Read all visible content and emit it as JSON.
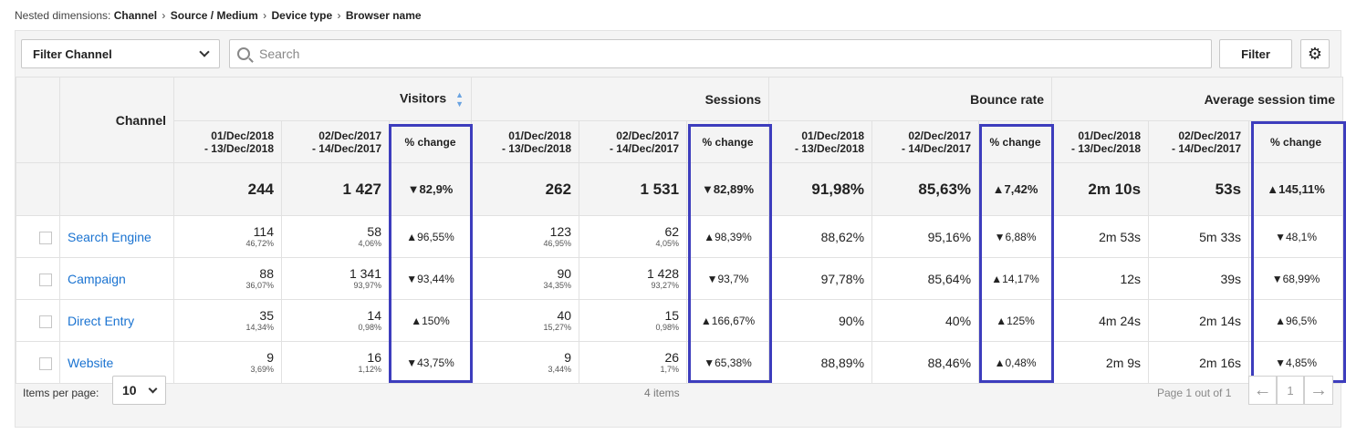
{
  "breadcrumb": {
    "lead": "Nested dimensions:",
    "segments": [
      "Channel",
      "Source / Medium",
      "Device type",
      "Browser name"
    ]
  },
  "toolbar": {
    "filter_select": "Filter Channel",
    "search_placeholder": "Search",
    "filter_button": "Filter",
    "settings_icon": "gear-icon"
  },
  "table": {
    "channel_header": "Channel",
    "groups": [
      "Visitors",
      "Sessions",
      "Bounce rate",
      "Average session time"
    ],
    "subheaders": {
      "range_a_line1": "01/Dec/2018",
      "range_a_line2": "- 13/Dec/2018",
      "range_b_line1": "02/Dec/2017",
      "range_b_line2": "- 14/Dec/2017",
      "change": "% change"
    },
    "totals": [
      "244",
      "1 427",
      "▼82,9%",
      "262",
      "1 531",
      "▼82,89%",
      "91,98%",
      "85,63%",
      "▲7,42%",
      "2m 10s",
      "53s",
      "▲145,11%"
    ],
    "rows": [
      {
        "channel": "Search Engine",
        "visitors": {
          "a": "114",
          "a_share": "46,72%",
          "b": "58",
          "b_share": "4,06%",
          "change": "▲96,55%"
        },
        "sessions": {
          "a": "123",
          "a_share": "46,95%",
          "b": "62",
          "b_share": "4,05%",
          "change": "▲98,39%"
        },
        "bounce": {
          "a": "88,62%",
          "b": "95,16%",
          "change": "▼6,88%"
        },
        "avg": {
          "a": "2m 53s",
          "b": "5m 33s",
          "change": "▼48,1%"
        }
      },
      {
        "channel": "Campaign",
        "visitors": {
          "a": "88",
          "a_share": "36,07%",
          "b": "1 341",
          "b_share": "93,97%",
          "change": "▼93,44%"
        },
        "sessions": {
          "a": "90",
          "a_share": "34,35%",
          "b": "1 428",
          "b_share": "93,27%",
          "change": "▼93,7%"
        },
        "bounce": {
          "a": "97,78%",
          "b": "85,64%",
          "change": "▲14,17%"
        },
        "avg": {
          "a": "12s",
          "b": "39s",
          "change": "▼68,99%"
        }
      },
      {
        "channel": "Direct Entry",
        "visitors": {
          "a": "35",
          "a_share": "14,34%",
          "b": "14",
          "b_share": "0,98%",
          "change": "▲150%"
        },
        "sessions": {
          "a": "40",
          "a_share": "15,27%",
          "b": "15",
          "b_share": "0,98%",
          "change": "▲166,67%"
        },
        "bounce": {
          "a": "90%",
          "b": "40%",
          "change": "▲125%"
        },
        "avg": {
          "a": "4m 24s",
          "b": "2m 14s",
          "change": "▲96,5%"
        }
      },
      {
        "channel": "Website",
        "visitors": {
          "a": "9",
          "a_share": "3,69%",
          "b": "16",
          "b_share": "1,12%",
          "change": "▼43,75%"
        },
        "sessions": {
          "a": "9",
          "a_share": "3,44%",
          "b": "26",
          "b_share": "1,7%",
          "change": "▼65,38%"
        },
        "bounce": {
          "a": "88,89%",
          "b": "88,46%",
          "change": "▲0,48%"
        },
        "avg": {
          "a": "2m 9s",
          "b": "2m 16s",
          "change": "▼4,85%"
        }
      }
    ]
  },
  "pagination": {
    "items_per_page_label": "Items per page:",
    "items_per_page_value": "10",
    "items_count": "4 items",
    "page_info": "Page 1 out of 1",
    "current_page": "1"
  },
  "colors": {
    "link": "#1a73d1",
    "highlight_box": "#3d3dbd"
  }
}
